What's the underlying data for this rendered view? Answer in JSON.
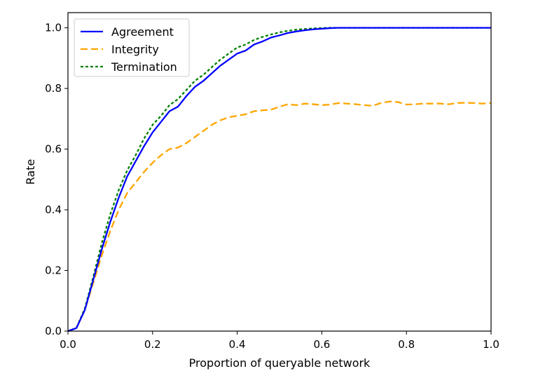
{
  "chart_data": {
    "type": "line",
    "title": "",
    "xlabel": "Proportion of queryable network",
    "ylabel": "Rate",
    "xlim": [
      0.0,
      1.0
    ],
    "ylim": [
      0.0,
      1.05
    ],
    "xticks": [
      0.0,
      0.2,
      0.4,
      0.6,
      0.8,
      1.0
    ],
    "xtick_labels": [
      "0.0",
      "0.2",
      "0.4",
      "0.6",
      "0.8",
      "1.0"
    ],
    "yticks": [
      0.0,
      0.2,
      0.4,
      0.6,
      0.8,
      1.0
    ],
    "ytick_labels": [
      "0.0",
      "0.2",
      "0.4",
      "0.6",
      "0.8",
      "1.0"
    ],
    "grid": false,
    "legend_position": "top-left",
    "series": [
      {
        "name": "Agreement",
        "color": "#0000ff",
        "style": "solid",
        "x": [
          0.0,
          0.02,
          0.04,
          0.06,
          0.08,
          0.1,
          0.12,
          0.14,
          0.16,
          0.18,
          0.2,
          0.22,
          0.24,
          0.26,
          0.28,
          0.3,
          0.32,
          0.34,
          0.36,
          0.38,
          0.4,
          0.42,
          0.44,
          0.46,
          0.48,
          0.5,
          0.52,
          0.54,
          0.56,
          0.58,
          0.6,
          0.62,
          0.64,
          0.7,
          0.8,
          0.9,
          1.0
        ],
        "y": [
          0.0,
          0.01,
          0.07,
          0.17,
          0.27,
          0.36,
          0.44,
          0.51,
          0.56,
          0.61,
          0.655,
          0.69,
          0.725,
          0.74,
          0.775,
          0.805,
          0.825,
          0.85,
          0.875,
          0.895,
          0.915,
          0.925,
          0.945,
          0.955,
          0.968,
          0.975,
          0.983,
          0.988,
          0.992,
          0.995,
          0.997,
          0.999,
          1.0,
          1.0,
          1.0,
          1.0,
          1.0
        ]
      },
      {
        "name": "Integrity",
        "color": "#ffa500",
        "style": "dashed",
        "x": [
          0.0,
          0.02,
          0.04,
          0.06,
          0.08,
          0.1,
          0.12,
          0.14,
          0.16,
          0.18,
          0.2,
          0.22,
          0.24,
          0.26,
          0.28,
          0.3,
          0.32,
          0.34,
          0.36,
          0.38,
          0.4,
          0.42,
          0.44,
          0.46,
          0.48,
          0.5,
          0.52,
          0.54,
          0.56,
          0.58,
          0.6,
          0.62,
          0.64,
          0.66,
          0.68,
          0.7,
          0.72,
          0.74,
          0.76,
          0.78,
          0.8,
          0.82,
          0.84,
          0.86,
          0.88,
          0.9,
          0.92,
          0.94,
          0.96,
          0.98,
          1.0
        ],
        "y": [
          0.0,
          0.01,
          0.07,
          0.16,
          0.25,
          0.33,
          0.4,
          0.455,
          0.49,
          0.525,
          0.555,
          0.58,
          0.6,
          0.605,
          0.62,
          0.64,
          0.66,
          0.68,
          0.695,
          0.705,
          0.71,
          0.715,
          0.725,
          0.728,
          0.73,
          0.74,
          0.748,
          0.745,
          0.75,
          0.748,
          0.745,
          0.747,
          0.752,
          0.75,
          0.748,
          0.745,
          0.743,
          0.752,
          0.757,
          0.755,
          0.747,
          0.748,
          0.75,
          0.75,
          0.75,
          0.748,
          0.752,
          0.753,
          0.752,
          0.75,
          0.752
        ]
      },
      {
        "name": "Termination",
        "color": "#008000",
        "style": "dotted",
        "x": [
          0.0,
          0.02,
          0.04,
          0.06,
          0.08,
          0.1,
          0.12,
          0.14,
          0.16,
          0.18,
          0.2,
          0.22,
          0.24,
          0.26,
          0.28,
          0.3,
          0.32,
          0.34,
          0.36,
          0.38,
          0.4,
          0.42,
          0.44,
          0.46,
          0.48,
          0.5,
          0.52,
          0.54,
          0.56,
          0.58,
          0.6,
          0.62,
          0.64,
          0.7,
          0.8,
          0.9,
          1.0
        ],
        "y": [
          0.0,
          0.01,
          0.075,
          0.18,
          0.29,
          0.385,
          0.465,
          0.53,
          0.58,
          0.635,
          0.68,
          0.71,
          0.745,
          0.765,
          0.795,
          0.825,
          0.845,
          0.87,
          0.895,
          0.915,
          0.935,
          0.945,
          0.96,
          0.97,
          0.978,
          0.985,
          0.99,
          0.994,
          0.996,
          0.998,
          0.999,
          1.0,
          1.0,
          1.0,
          1.0,
          1.0,
          1.0
        ]
      }
    ]
  }
}
